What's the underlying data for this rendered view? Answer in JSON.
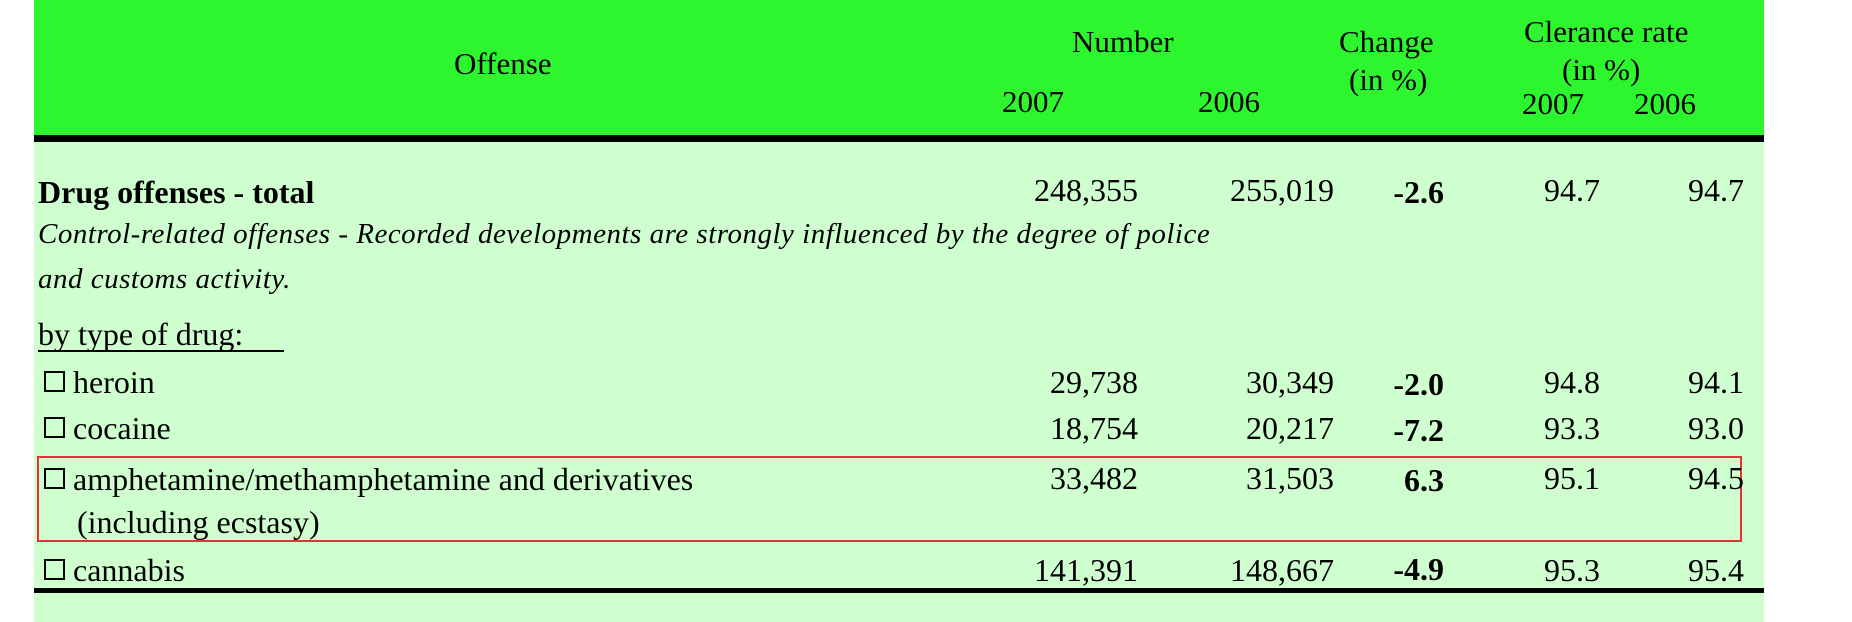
{
  "header": {
    "offense_label": "Offense",
    "number_label": "Number",
    "change_label": "Change",
    "change_unit": "(in %)",
    "clearance_label": "Clerance rate",
    "clearance_unit": "(in %)",
    "year_2007": "2007",
    "year_2006": "2006",
    "clear_2007": "2007",
    "clear_2006": "2006"
  },
  "total": {
    "label": "Drug offenses - total",
    "n2007": "248,355",
    "n2006": "255,019",
    "change": "-2.6",
    "cr2007": "94.7",
    "cr2006": "94.7"
  },
  "note": {
    "line1": "Control-related offenses - Recorded developments are strongly influenced by the degree of police",
    "line2": "and customs activity."
  },
  "section_label": "by type of drug:",
  "rows": [
    {
      "label": "heroin",
      "n2007": "29,738",
      "n2006": "30,349",
      "change": "-2.0",
      "cr2007": "94.8",
      "cr2006": "94.1"
    },
    {
      "label": "cocaine",
      "n2007": "18,754",
      "n2006": "20,217",
      "change": "-7.2",
      "cr2007": "93.3",
      "cr2006": "93.0"
    },
    {
      "label": "amphetamine/methamphetamine and derivatives",
      "label2": "(including ecstasy)",
      "n2007": "33,482",
      "n2006": "31,503",
      "change": "6.3",
      "cr2007": "95.1",
      "cr2006": "94.5"
    },
    {
      "label": "cannabis",
      "n2007": "141,391",
      "n2006": "148,667",
      "change": "-4.9",
      "cr2007": "95.3",
      "cr2006": "95.4"
    }
  ],
  "colors": {
    "header_bg": "#2ef62e",
    "body_bg": "#cfffcf",
    "highlight_border": "#e8303a"
  }
}
